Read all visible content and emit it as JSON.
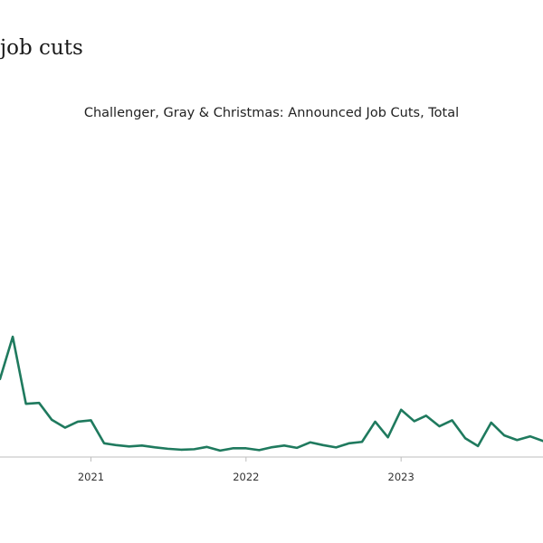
{
  "page": {
    "heading": "job cuts"
  },
  "chart_data": {
    "type": "line",
    "title": "Challenger, Gray & Christmas: Announced Job Cuts, Total",
    "xlabel": "",
    "ylabel": "",
    "x_ticks": [
      "2021",
      "2022",
      "2023"
    ],
    "x_tick_dates": [
      "2021-01-01",
      "2022-01-01",
      "2023-01-01"
    ],
    "xlim": [
      "2020-06-01",
      "2023-12-01"
    ],
    "ylim": [
      0,
      700000
    ],
    "grid": false,
    "legend": "none",
    "series": [
      {
        "color": "#1f7a5e",
        "x": [
          "2020-06-01",
          "2020-07-01",
          "2020-08-01",
          "2020-09-01",
          "2020-10-01",
          "2020-11-01",
          "2020-12-01",
          "2021-01-01",
          "2021-02-01",
          "2021-03-01",
          "2021-04-01",
          "2021-05-01",
          "2021-06-01",
          "2021-07-01",
          "2021-08-01",
          "2021-09-01",
          "2021-10-01",
          "2021-11-01",
          "2021-12-01",
          "2022-01-01",
          "2022-02-01",
          "2022-03-01",
          "2022-04-01",
          "2022-05-01",
          "2022-06-01",
          "2022-07-01",
          "2022-08-01",
          "2022-09-01",
          "2022-10-01",
          "2022-11-01",
          "2022-12-01",
          "2023-01-01",
          "2023-02-01",
          "2023-03-01",
          "2023-04-01",
          "2023-05-01",
          "2023-06-01",
          "2023-07-01",
          "2023-08-01",
          "2023-09-01",
          "2023-10-01",
          "2023-11-01",
          "2023-12-01"
        ],
        "values": [
          170000,
          262000,
          116000,
          118000,
          81000,
          64000,
          77000,
          80000,
          30000,
          26000,
          23000,
          25000,
          21000,
          18000,
          16000,
          17000,
          22000,
          14000,
          19000,
          19000,
          15000,
          21000,
          25000,
          20000,
          32000,
          26000,
          21000,
          30000,
          33000,
          77000,
          43000,
          103000,
          78000,
          90000,
          67000,
          80000,
          41000,
          24000,
          75000,
          47000,
          37000,
          45000,
          35000
        ]
      }
    ]
  }
}
